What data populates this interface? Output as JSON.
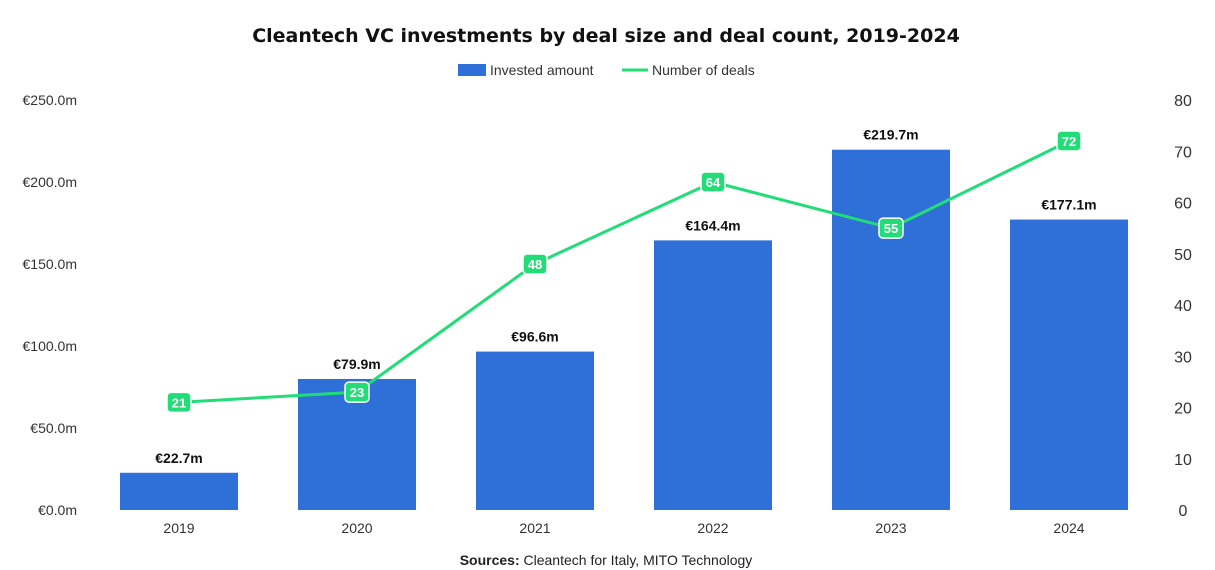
{
  "chart_data": {
    "type": "bar",
    "title": "Cleantech VC investments by deal size and deal count, 2019-2024",
    "categories": [
      "2019",
      "2020",
      "2021",
      "2022",
      "2023",
      "2024"
    ],
    "series": [
      {
        "name": "Invested amount",
        "type": "bar",
        "axis": "left",
        "values": [
          22.7,
          79.9,
          96.6,
          164.4,
          219.7,
          177.1
        ],
        "labels": [
          "€22.7m",
          "€79.9m",
          "€96.6m",
          "€164.4m",
          "€219.7m",
          "€177.1m"
        ],
        "color": "#2f6fd8"
      },
      {
        "name": "Number of deals",
        "type": "line",
        "axis": "right",
        "values": [
          21,
          23,
          48,
          64,
          55,
          72
        ],
        "labels": [
          "21",
          "23",
          "48",
          "64",
          "55",
          "72"
        ],
        "color": "#22dd77"
      }
    ],
    "y_left": {
      "ylim": [
        0,
        250
      ],
      "ticks": [
        0,
        50,
        100,
        150,
        200,
        250
      ],
      "tick_labels": [
        "€0.0m",
        "€50.0m",
        "€100.0m",
        "€150.0m",
        "€200.0m",
        "€250.0m"
      ]
    },
    "y_right": {
      "ylim": [
        0,
        80
      ],
      "ticks": [
        0,
        10,
        20,
        30,
        40,
        50,
        60,
        70,
        80
      ],
      "tick_labels": [
        "0",
        "10",
        "20",
        "30",
        "40",
        "50",
        "60",
        "70",
        "80"
      ]
    },
    "grid": false,
    "legend_position": "top-center"
  },
  "source": {
    "label": "Sources:",
    "text": " Cleantech for Italy, MITO Technology"
  }
}
